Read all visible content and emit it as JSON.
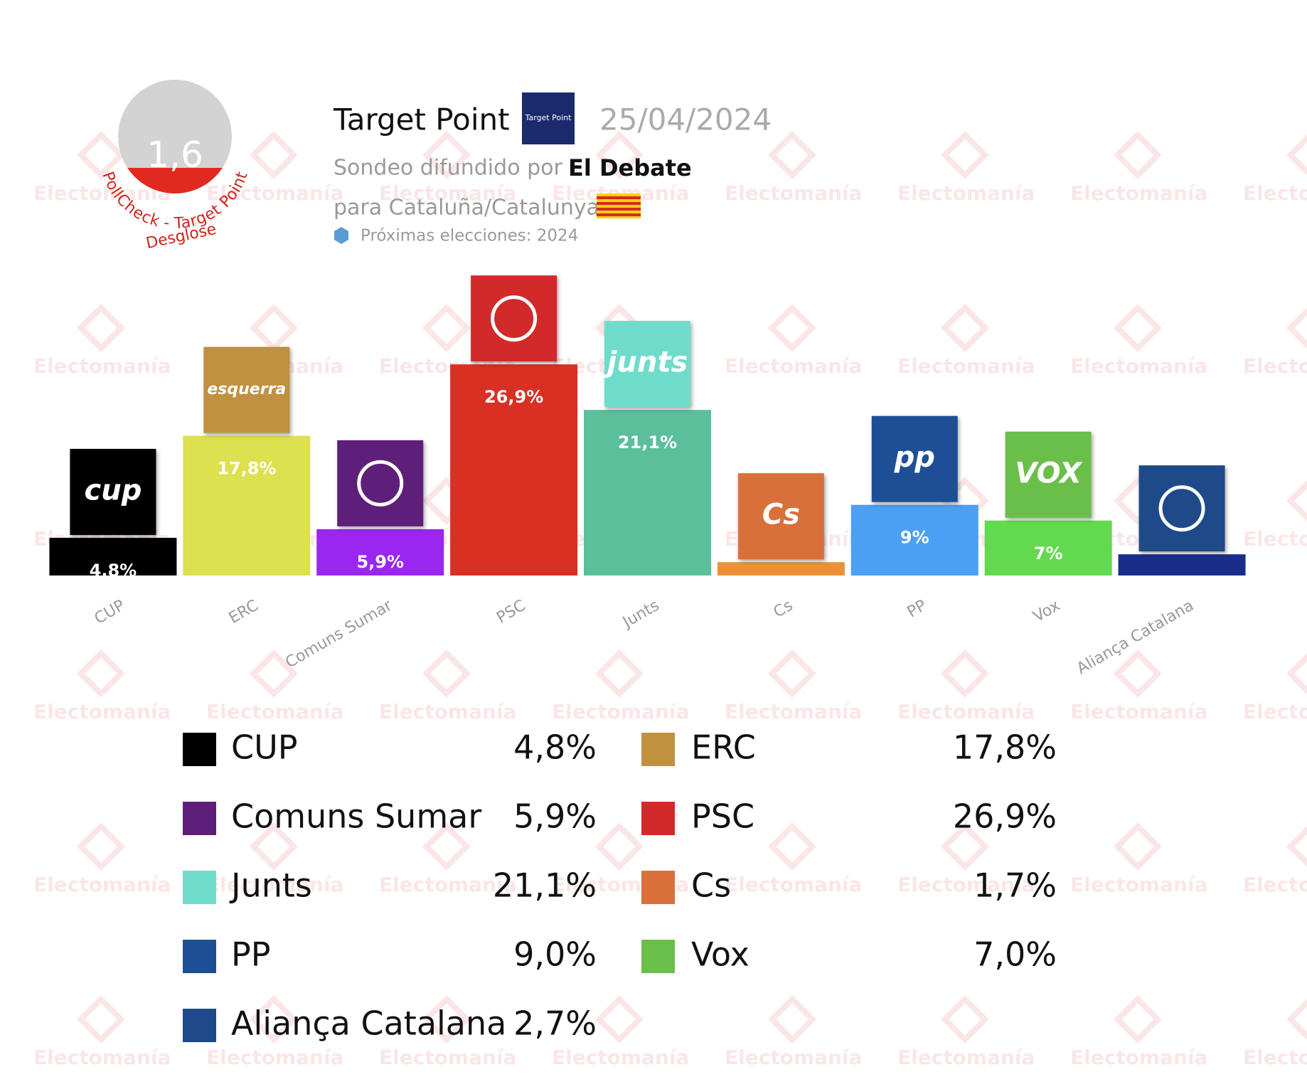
{
  "header": {
    "pollster": "Target Point",
    "pollster_logo": "Target Point",
    "date": "25/04/2024",
    "spread_by_label": "Sondeo difundido por",
    "spread_by": "El Debate",
    "region": "para Cataluña/Catalunya",
    "next_election": "Próximas elecciones: 2024",
    "score": "1,6",
    "score_label": "PollCheck - Target Point",
    "breakdown": "Desglose"
  },
  "watermark": "Electomanía",
  "chart_data": {
    "type": "bar",
    "categories": [
      "CUP",
      "ERC",
      "Comuns Sumar",
      "PSC",
      "Junts",
      "Cs",
      "PP",
      "Vox",
      "Aliança Catalana"
    ],
    "values": [
      4.8,
      17.8,
      5.9,
      26.9,
      21.1,
      1.7,
      9.0,
      7.0,
      2.7
    ],
    "value_labels": [
      "4,8%",
      "17,8%",
      "5,9%",
      "26,9%",
      "21,1%",
      null,
      "9%",
      "7%",
      null
    ],
    "legend_labels": [
      "4,8%",
      "17,8%",
      "5,9%",
      "26,9%",
      "21,1%",
      "1,7%",
      "9,0%",
      "7,0%",
      "2,7%"
    ],
    "colors": [
      "#000000",
      "#dde04f",
      "#9b26f0",
      "#d93024",
      "#5bbf9c",
      "#eb9238",
      "#4b9ff5",
      "#62d94e",
      "#1a2d8a"
    ],
    "logo_colors": [
      "#000000",
      "#bf9140",
      "#5e1f7a",
      "#d22a2a",
      "#6fdccb",
      "#d9703a",
      "#1e4f96",
      "#6abf4b",
      "#1e4a8a"
    ],
    "logo_texts": [
      "cup",
      "esquerra",
      null,
      null,
      "junts",
      "Cs",
      "pp",
      "VOX",
      null
    ],
    "ylim": [
      0,
      30
    ]
  }
}
